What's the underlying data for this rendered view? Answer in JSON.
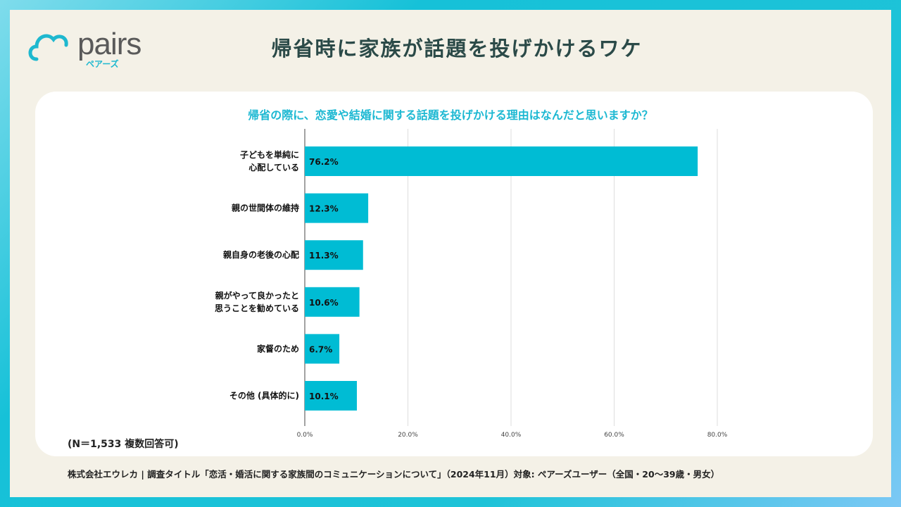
{
  "logo": {
    "name": "pairs",
    "sub": "ペアーズ"
  },
  "title": "帰省時に家族が話題を投げかけるワケ",
  "note": "(N＝1,533 複数回答可)",
  "footer": "株式会社エウレカ | 調査タイトル「恋活・婚活に関する家族間のコミュニケーションについて」（2024年11月）対象: ペアーズユーザー（全国・20〜39歳・男女）",
  "colors": {
    "bar": "#00bcd4",
    "accent": "#1cb8d2"
  },
  "chart_data": {
    "type": "bar",
    "orientation": "horizontal",
    "title": "帰省の際に、恋愛や結婚に関する話題を投げかける理由はなんだと思いますか？",
    "categories": [
      [
        "子どもを単純に",
        "心配している"
      ],
      [
        "親の世間体の維持"
      ],
      [
        "親自身の老後の心配"
      ],
      [
        "親がやって良かったと",
        "思うことを勧めている"
      ],
      [
        "家督のため"
      ],
      [
        "その他 (具体的に)"
      ]
    ],
    "values": [
      76.2,
      12.3,
      11.3,
      10.6,
      6.7,
      10.1
    ],
    "value_labels": [
      "76.2%",
      "12.3%",
      "11.3%",
      "10.6%",
      "6.7%",
      "10.1%"
    ],
    "xlim": [
      0,
      80
    ],
    "xticks": [
      0,
      20,
      40,
      60,
      80
    ],
    "xtick_labels": [
      "0.0%",
      "20.0%",
      "40.0%",
      "60.0%",
      "80.0%"
    ],
    "grid": true
  }
}
